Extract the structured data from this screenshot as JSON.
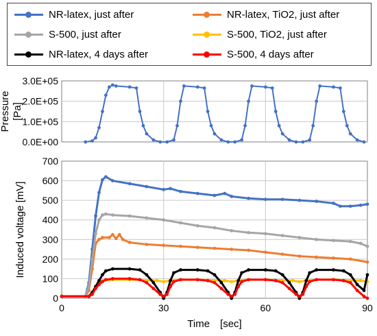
{
  "legend": [
    {
      "name": "NR-latex, just after",
      "color": "#4472C4"
    },
    {
      "name": "NR-latex, TiO2, just after",
      "color": "#ED7D31"
    },
    {
      "name": "S-500, just after",
      "color": "#A5A5A5"
    },
    {
      "name": "S-500, TiO2, just after",
      "color": "#FFC000"
    },
    {
      "name": "NR-latex, 4 days after",
      "color": "#000000"
    },
    {
      "name": "S-500, 4 days after",
      "color": "#FF0000"
    }
  ],
  "chart_data": [
    {
      "type": "line",
      "ylabel": "Pressure [Pa]",
      "ylim": [
        0,
        300000
      ],
      "yticks": [
        "0.0E+00",
        "1.0E+05",
        "2.0E+05",
        "3.0E+05"
      ],
      "xlim": [
        0,
        90
      ],
      "grid": true,
      "series": [
        {
          "name": "Pressure",
          "color": "#4472C4",
          "x": [
            7,
            9,
            10,
            11,
            12,
            13,
            14,
            15,
            16,
            20,
            22,
            23,
            24,
            25,
            27,
            29,
            31,
            33,
            34,
            35,
            36,
            40,
            42,
            43,
            44,
            45,
            47,
            49,
            51,
            53,
            54,
            55,
            56,
            60,
            62,
            63,
            64,
            65,
            67,
            69,
            71,
            73,
            74,
            75,
            76,
            80,
            82,
            83,
            84,
            85,
            87,
            89
          ],
          "values": [
            0,
            5000,
            20000,
            70000,
            150000,
            230000,
            270000,
            280000,
            275000,
            270000,
            265000,
            150000,
            80000,
            40000,
            10000,
            0,
            0,
            10000,
            80000,
            200000,
            275000,
            270000,
            265000,
            150000,
            80000,
            40000,
            10000,
            0,
            0,
            10000,
            80000,
            200000,
            275000,
            270000,
            265000,
            150000,
            80000,
            40000,
            10000,
            0,
            0,
            10000,
            80000,
            200000,
            275000,
            270000,
            265000,
            150000,
            80000,
            40000,
            10000,
            0
          ]
        }
      ]
    },
    {
      "type": "line",
      "xlabel": "Time　[sec]",
      "ylabel": "Induced voltage [mV]",
      "xlim": [
        0,
        90
      ],
      "ylim": [
        0,
        700
      ],
      "xticks": [
        "0",
        "30",
        "60",
        "90"
      ],
      "yticks": [
        "0",
        "100",
        "200",
        "300",
        "400",
        "500",
        "600",
        "700"
      ],
      "grid": true,
      "series": [
        {
          "name": "NR-latex, just after",
          "color": "#4472C4",
          "x": [
            0,
            7,
            8,
            9,
            10,
            11,
            12,
            13,
            15,
            20,
            25,
            30,
            32,
            35,
            40,
            45,
            48,
            50,
            55,
            60,
            65,
            70,
            75,
            80,
            82,
            85,
            88,
            90
          ],
          "values": [
            10,
            10,
            80,
            250,
            420,
            540,
            605,
            620,
            600,
            585,
            570,
            555,
            560,
            545,
            535,
            525,
            535,
            520,
            510,
            505,
            505,
            500,
            495,
            485,
            470,
            470,
            475,
            480
          ]
        },
        {
          "name": "NR-latex, TiO2, just after",
          "color": "#ED7D31",
          "x": [
            0,
            7,
            8,
            9,
            10,
            11,
            12,
            14,
            15,
            16,
            17,
            18,
            20,
            25,
            30,
            35,
            40,
            45,
            50,
            55,
            60,
            65,
            70,
            75,
            80,
            85,
            90
          ],
          "values": [
            10,
            10,
            40,
            150,
            280,
            300,
            310,
            310,
            325,
            305,
            325,
            300,
            285,
            275,
            270,
            265,
            260,
            255,
            250,
            245,
            235,
            225,
            215,
            210,
            205,
            200,
            185
          ]
        },
        {
          "name": "S-500, just after",
          "color": "#A5A5A5",
          "x": [
            0,
            7,
            8,
            9,
            10,
            11,
            12,
            13,
            15,
            20,
            25,
            30,
            35,
            40,
            45,
            50,
            55,
            60,
            65,
            70,
            75,
            80,
            85,
            88,
            90
          ],
          "values": [
            10,
            10,
            60,
            200,
            330,
            400,
            425,
            430,
            425,
            420,
            410,
            400,
            385,
            370,
            360,
            345,
            335,
            330,
            320,
            310,
            300,
            295,
            290,
            280,
            265
          ]
        },
        {
          "name": "S-500, TiO2, just after",
          "color": "#FFC000",
          "x": [
            0,
            8,
            9,
            10,
            11,
            12,
            15,
            20,
            28,
            30,
            32,
            35,
            40,
            48,
            50,
            52,
            55,
            60,
            68,
            70,
            72,
            75,
            80,
            88,
            90
          ],
          "values": [
            10,
            10,
            30,
            60,
            80,
            90,
            95,
            95,
            90,
            85,
            90,
            95,
            95,
            90,
            85,
            90,
            95,
            95,
            90,
            85,
            90,
            95,
            95,
            90,
            85
          ]
        },
        {
          "name": "NR-latex, 4 days after",
          "color": "#000000",
          "x": [
            0,
            8,
            9,
            10,
            11,
            12,
            13,
            15,
            20,
            23,
            25,
            27,
            29,
            30,
            31,
            32,
            33,
            35,
            40,
            43,
            45,
            47,
            49,
            50,
            51,
            52,
            53,
            55,
            60,
            63,
            65,
            67,
            69,
            70,
            71,
            72,
            73,
            75,
            80,
            83,
            85,
            87,
            89,
            90
          ],
          "values": [
            10,
            10,
            30,
            60,
            90,
            120,
            140,
            150,
            150,
            145,
            120,
            80,
            30,
            0,
            30,
            90,
            130,
            145,
            145,
            140,
            120,
            80,
            30,
            0,
            30,
            90,
            130,
            145,
            145,
            140,
            120,
            80,
            30,
            0,
            30,
            90,
            130,
            145,
            145,
            140,
            120,
            70,
            40,
            120
          ]
        },
        {
          "name": "S-500, 4 days after",
          "color": "#FF0000",
          "x": [
            0,
            8,
            9,
            10,
            11,
            12,
            13,
            15,
            20,
            23,
            25,
            27,
            29,
            30,
            31,
            32,
            33,
            35,
            40,
            43,
            45,
            47,
            49,
            50,
            51,
            52,
            53,
            55,
            60,
            63,
            65,
            67,
            69,
            70,
            71,
            72,
            73,
            75,
            80,
            83,
            85,
            87,
            89,
            90
          ],
          "values": [
            10,
            10,
            20,
            50,
            70,
            85,
            95,
            100,
            100,
            95,
            80,
            50,
            20,
            10,
            20,
            60,
            85,
            95,
            95,
            90,
            80,
            50,
            20,
            10,
            20,
            60,
            85,
            95,
            95,
            90,
            80,
            50,
            20,
            10,
            20,
            60,
            85,
            95,
            95,
            90,
            80,
            40,
            10,
            0
          ]
        }
      ]
    }
  ]
}
